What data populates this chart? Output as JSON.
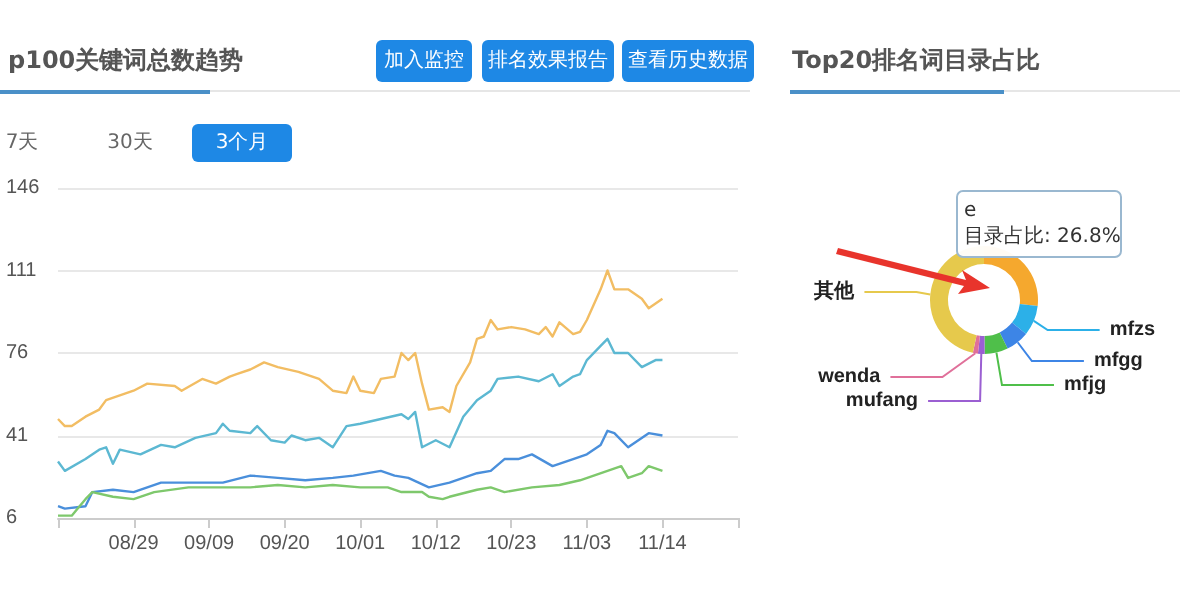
{
  "chart_data": [
    {
      "type": "line",
      "title": "p100关键词总数趋势",
      "annotations": [
        "加入监控",
        "排名效果报告",
        "查看历史数据",
        "7天",
        "30天",
        "3个月"
      ],
      "xlim": [
        "--08-18",
        "--11-25"
      ],
      "xticks": [
        {
          "value": "--08-29",
          "label": "08/29"
        },
        {
          "value": "--09-09",
          "label": "09/09"
        },
        {
          "value": "--09-20",
          "label": "09/20"
        },
        {
          "value": "--10-01",
          "label": "10/01"
        },
        {
          "value": "--10-12",
          "label": "10/12"
        },
        {
          "value": "--10-23",
          "label": "10/23"
        },
        {
          "value": "--11-03",
          "label": "11/03"
        },
        {
          "value": "--11-14",
          "label": "11/14"
        }
      ],
      "ylim": [
        6,
        146
      ],
      "yticks": [
        6,
        41,
        76,
        111,
        146
      ],
      "grid": "y",
      "legend": false,
      "series": [
        {
          "color": "#f2bd63",
          "x": [
            "--08-18",
            "--08-19",
            "--08-20",
            "--08-22",
            "--08-24",
            "--08-25",
            "--08-27",
            "--08-29",
            "--08-31",
            "--09-04",
            "--09-05",
            "--09-08",
            "--09-10",
            "--09-12",
            "--09-13",
            "--09-15",
            "--09-17",
            "--09-19",
            "--09-22",
            "--09-25",
            "--09-27",
            "--09-29",
            "--09-30",
            "--10-01",
            "--10-03",
            "--10-04",
            "--10-06",
            "--10-07",
            "--10-08",
            "--10-09",
            "--10-10",
            "--10-11",
            "--10-13",
            "--10-14",
            "--10-15",
            "--10-17",
            "--10-18",
            "--10-19",
            "--10-20",
            "--10-21",
            "--10-23",
            "--10-25",
            "--10-27",
            "--10-28",
            "--10-29",
            "--10-30",
            "--11-01",
            "--11-02",
            "--11-03",
            "--11-05",
            "--11-06",
            "--11-07",
            "--11-09",
            "--11-11",
            "--11-12",
            "--11-14"
          ],
          "values": [
            48,
            45,
            45,
            49,
            52,
            56,
            58,
            60,
            63,
            62,
            60,
            65,
            63,
            66,
            67,
            69,
            72,
            70,
            68,
            65,
            60,
            59,
            66,
            60,
            59,
            65,
            66,
            76,
            73,
            76,
            63,
            52,
            53,
            51,
            62,
            72,
            82,
            83,
            90,
            86,
            87,
            86,
            84,
            87,
            83,
            89,
            84,
            85,
            90,
            103,
            111,
            103,
            103,
            99,
            95,
            99
          ]
        },
        {
          "color": "#5cb8d2",
          "x": [
            "--08-18",
            "--08-19",
            "--08-22",
            "--08-24",
            "--08-25",
            "--08-26",
            "--08-27",
            "--08-30",
            "--09-02",
            "--09-04",
            "--09-07",
            "--09-10",
            "--09-11",
            "--09-12",
            "--09-15",
            "--09-16",
            "--09-18",
            "--09-20",
            "--09-21",
            "--09-23",
            "--09-25",
            "--09-27",
            "--09-29",
            "--10-01",
            "--10-04",
            "--10-07",
            "--10-08",
            "--10-09",
            "--10-10",
            "--10-12",
            "--10-14",
            "--10-16",
            "--10-18",
            "--10-20",
            "--10-21",
            "--10-24",
            "--10-27",
            "--10-29",
            "--10-30",
            "--11-01",
            "--11-02",
            "--11-03",
            "--11-05",
            "--11-06",
            "--11-07",
            "--11-09",
            "--11-11",
            "--11-13",
            "--11-14"
          ],
          "values": [
            30,
            26,
            31,
            35,
            36,
            29,
            35,
            33,
            37,
            36,
            40,
            42,
            46,
            43,
            42,
            45,
            39,
            38,
            41,
            39,
            40,
            36,
            45,
            46,
            48,
            50,
            48,
            51,
            36,
            39,
            36,
            49,
            56,
            60,
            65,
            66,
            64,
            67,
            62,
            66,
            67,
            73,
            79,
            82,
            76,
            76,
            70,
            73,
            73
          ]
        },
        {
          "color": "#4a8fdb",
          "x": [
            "--08-18",
            "--08-19",
            "--08-22",
            "--08-23",
            "--08-26",
            "--08-29",
            "--09-02",
            "--09-06",
            "--09-11",
            "--09-15",
            "--09-19",
            "--09-23",
            "--09-27",
            "--09-30",
            "--10-04",
            "--10-06",
            "--10-08",
            "--10-11",
            "--10-14",
            "--10-18",
            "--10-20",
            "--10-22",
            "--10-24",
            "--10-26",
            "--10-29",
            "--11-01",
            "--11-03",
            "--11-05",
            "--11-06",
            "--11-07",
            "--11-09",
            "--11-12",
            "--11-14"
          ],
          "values": [
            11,
            10,
            11,
            17,
            18,
            17,
            21,
            21,
            21,
            24,
            23,
            22,
            23,
            24,
            26,
            24,
            23,
            19,
            21,
            25,
            26,
            31,
            31,
            33,
            28,
            31,
            33,
            37,
            43,
            42,
            36,
            42,
            41
          ]
        },
        {
          "color": "#7ec86c",
          "x": [
            "--08-18",
            "--08-19",
            "--08-20",
            "--08-22",
            "--08-23",
            "--08-26",
            "--08-29",
            "--09-01",
            "--09-06",
            "--09-09",
            "--09-15",
            "--09-19",
            "--09-23",
            "--09-27",
            "--10-01",
            "--10-05",
            "--10-07",
            "--10-10",
            "--10-11",
            "--10-13",
            "--10-14",
            "--10-18",
            "--10-20",
            "--10-22",
            "--10-26",
            "--10-30",
            "--11-02",
            "--11-04",
            "--11-06",
            "--11-08",
            "--11-09",
            "--11-11",
            "--11-12",
            "--11-14"
          ],
          "values": [
            7,
            7,
            7,
            14,
            17,
            15,
            14,
            17,
            19,
            19,
            19,
            20,
            19,
            20,
            19,
            19,
            17,
            17,
            15,
            14,
            15,
            18,
            19,
            17,
            19,
            20,
            22,
            24,
            26,
            28,
            23,
            25,
            28,
            26
          ]
        }
      ]
    },
    {
      "type": "donut",
      "title": "Top20排名词目录占比",
      "categories": [
        "e",
        "mfzs",
        "mfgg",
        "mfjg",
        "mufang",
        "wenda",
        "其他"
      ],
      "values": [
        26.8,
        9,
        7,
        7,
        2,
        1.5,
        46.7
      ],
      "colors": [
        "#f5a82e",
        "#2cb0e8",
        "#3d85e6",
        "#4fbf4a",
        "#9b5fd2",
        "#e0709a",
        "#e6c94c"
      ],
      "annotations": [
        "目录占比: 26.8%"
      ],
      "legend": false
    }
  ]
}
